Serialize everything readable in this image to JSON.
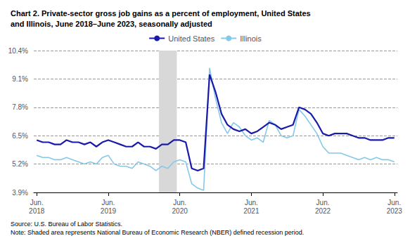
{
  "chart_data": {
    "type": "line",
    "title": "Chart 2. Private-sector gross job gains as a percent of employment, United States\nand Illinois, June 2018–June 2023, seasonally adjusted",
    "source_note": "Source: U.S. Bureau of Labor Statistics.\nNote: Shaded area represents National Bureau of Economic Research (NBER) defined recession period.",
    "categories": [
      "Jun.\n2018",
      null,
      null,
      null,
      null,
      null,
      null,
      null,
      null,
      null,
      null,
      null,
      "Jun.\n2019",
      null,
      null,
      null,
      null,
      null,
      null,
      null,
      null,
      null,
      null,
      null,
      "Jun.\n2020",
      null,
      null,
      null,
      null,
      null,
      null,
      null,
      null,
      null,
      null,
      null,
      "Jun.\n2021",
      null,
      null,
      null,
      null,
      null,
      null,
      null,
      null,
      null,
      null,
      null,
      "Jun.\n2022",
      null,
      null,
      null,
      null,
      null,
      null,
      null,
      null,
      null,
      null,
      null,
      "Jun.\n2023"
    ],
    "series": [
      {
        "name": "United States",
        "color": "#1a1aaa",
        "values": [
          6.3,
          6.2,
          6.2,
          6.1,
          6.1,
          6.3,
          6.2,
          6.2,
          6.1,
          6.2,
          6.0,
          6.2,
          6.3,
          6.2,
          6.1,
          6.0,
          6.0,
          6.2,
          6.0,
          6.0,
          5.9,
          6.1,
          6.1,
          6.3,
          6.3,
          6.2,
          5.0,
          4.9,
          5.0,
          9.3,
          8.5,
          7.5,
          7.0,
          6.8,
          6.7,
          6.8,
          6.6,
          6.7,
          6.9,
          7.1,
          7.0,
          6.8,
          6.9,
          7.0,
          7.8,
          7.7,
          7.5,
          7.1,
          6.6,
          6.5,
          6.6,
          6.6,
          6.6,
          6.5,
          6.4,
          6.4,
          6.3,
          6.3,
          6.3,
          6.4,
          6.4
        ]
      },
      {
        "name": "Illinois",
        "color": "#85C8E8",
        "values": [
          5.6,
          5.5,
          5.5,
          5.4,
          5.4,
          5.5,
          5.4,
          5.3,
          5.2,
          5.3,
          5.2,
          5.5,
          5.6,
          5.2,
          5.1,
          5.1,
          5.0,
          5.3,
          5.2,
          5.1,
          4.9,
          5.1,
          5.0,
          5.3,
          5.4,
          5.3,
          4.3,
          4.1,
          4.0,
          9.6,
          8.2,
          7.1,
          6.6,
          7.1,
          6.9,
          6.5,
          6.3,
          6.4,
          6.2,
          7.2,
          7.0,
          6.5,
          6.4,
          6.5,
          7.7,
          7.4,
          7.0,
          6.6,
          6.0,
          5.7,
          5.7,
          5.7,
          5.6,
          5.5,
          5.4,
          5.5,
          5.4,
          5.5,
          5.4,
          5.4,
          5.3
        ]
      }
    ],
    "recession": {
      "start": 20.5,
      "end": 23.5,
      "color": "#D8D8D8"
    },
    "ylim": [
      3.9,
      10.4
    ],
    "yticks": [
      {
        "value": 3.9,
        "label": "3.9%"
      },
      {
        "value": 5.2,
        "label": "5.2%"
      },
      {
        "value": 6.5,
        "label": "6.5%"
      },
      {
        "value": 7.8,
        "label": "7.8%"
      },
      {
        "value": 9.1,
        "label": "9.1%"
      },
      {
        "value": 10.4,
        "label": "10.4%"
      }
    ],
    "grid": true,
    "legend": "top"
  }
}
